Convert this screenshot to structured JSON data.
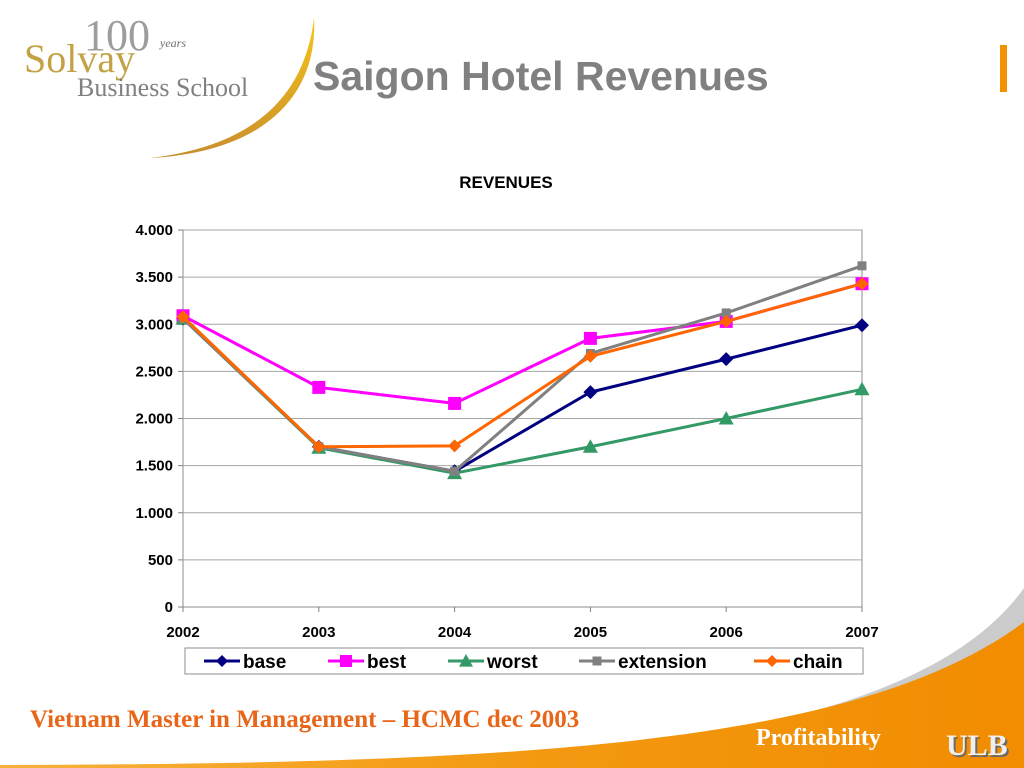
{
  "logo": {
    "anniversary_number": "100",
    "anniversary_word": "years",
    "name": "Solvay",
    "subtitle": "Business School"
  },
  "slide": {
    "title": "Saigon Hotel Revenues",
    "footer": "Vietnam Master in Management – HCMC dec 2003",
    "section": "Profitability",
    "university": "ULB"
  },
  "colors": {
    "title": "#808080",
    "accent": "#F39200",
    "footer_text": "#E8661A",
    "logo_gold": "#C3A245"
  },
  "chart_data": {
    "type": "line",
    "title": "REVENUES",
    "categories": [
      "2002",
      "2003",
      "2004",
      "2005",
      "2006",
      "2007"
    ],
    "ylim": [
      0,
      4000
    ],
    "y_tick_values": [
      0,
      500,
      1000,
      1500,
      2000,
      2500,
      3000,
      3500,
      4000
    ],
    "y_tick_labels": [
      "0",
      "500",
      "1.000",
      "1.500",
      "2.000",
      "2.500",
      "3.000",
      "3.500",
      "4.000"
    ],
    "grid": true,
    "legend_position": "bottom",
    "series": [
      {
        "name": "base",
        "color": "#000080",
        "marker": "diamond",
        "values": [
          3060,
          1700,
          1440,
          2280,
          2630,
          2990
        ]
      },
      {
        "name": "best",
        "color": "#FF00FF",
        "marker": "square",
        "values": [
          3090,
          2330,
          2160,
          2850,
          3030,
          3430
        ]
      },
      {
        "name": "worst",
        "color": "#339966",
        "marker": "triangle",
        "values": [
          3060,
          1690,
          1420,
          1700,
          2000,
          2310
        ]
      },
      {
        "name": "extension",
        "color": "#808080",
        "marker": "square",
        "values": [
          3060,
          1700,
          1440,
          2690,
          3120,
          3620
        ]
      },
      {
        "name": "chain",
        "color": "#FF6600",
        "marker": "diamond",
        "values": [
          3080,
          1700,
          1710,
          2660,
          3030,
          3430
        ]
      }
    ]
  }
}
